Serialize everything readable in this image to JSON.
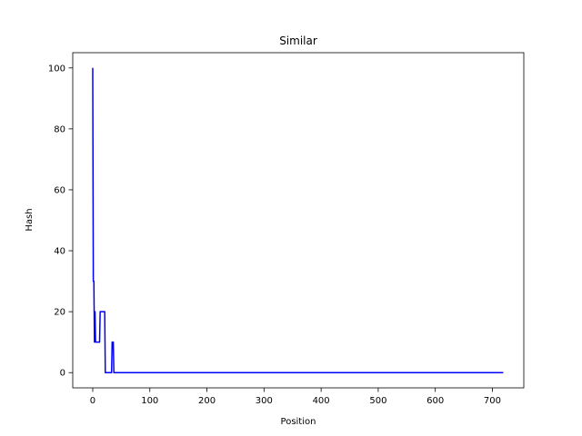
{
  "chart_data": {
    "type": "line",
    "title": "Similar",
    "xlabel": "Position",
    "ylabel": "Hash",
    "xlim": [
      -35,
      755
    ],
    "ylim": [
      -5,
      105
    ],
    "xticks": [
      0,
      100,
      200,
      300,
      400,
      500,
      600,
      700
    ],
    "yticks": [
      0,
      20,
      40,
      60,
      80,
      100
    ],
    "xtick_labels": [
      "0",
      "100",
      "200",
      "300",
      "400",
      "500",
      "600",
      "700"
    ],
    "ytick_labels": [
      "0",
      "20",
      "40",
      "60",
      "80",
      "100"
    ],
    "grid": false,
    "series": [
      {
        "color": "#0000ff",
        "points": [
          [
            0,
            100
          ],
          [
            1,
            30
          ],
          [
            2,
            30
          ],
          [
            3,
            10
          ],
          [
            4,
            20
          ],
          [
            5,
            10
          ],
          [
            12,
            10
          ],
          [
            13,
            20
          ],
          [
            21,
            20
          ],
          [
            22,
            0
          ],
          [
            33,
            0
          ],
          [
            34,
            10
          ],
          [
            36,
            10
          ],
          [
            37,
            0
          ],
          [
            719,
            0
          ]
        ]
      }
    ]
  }
}
